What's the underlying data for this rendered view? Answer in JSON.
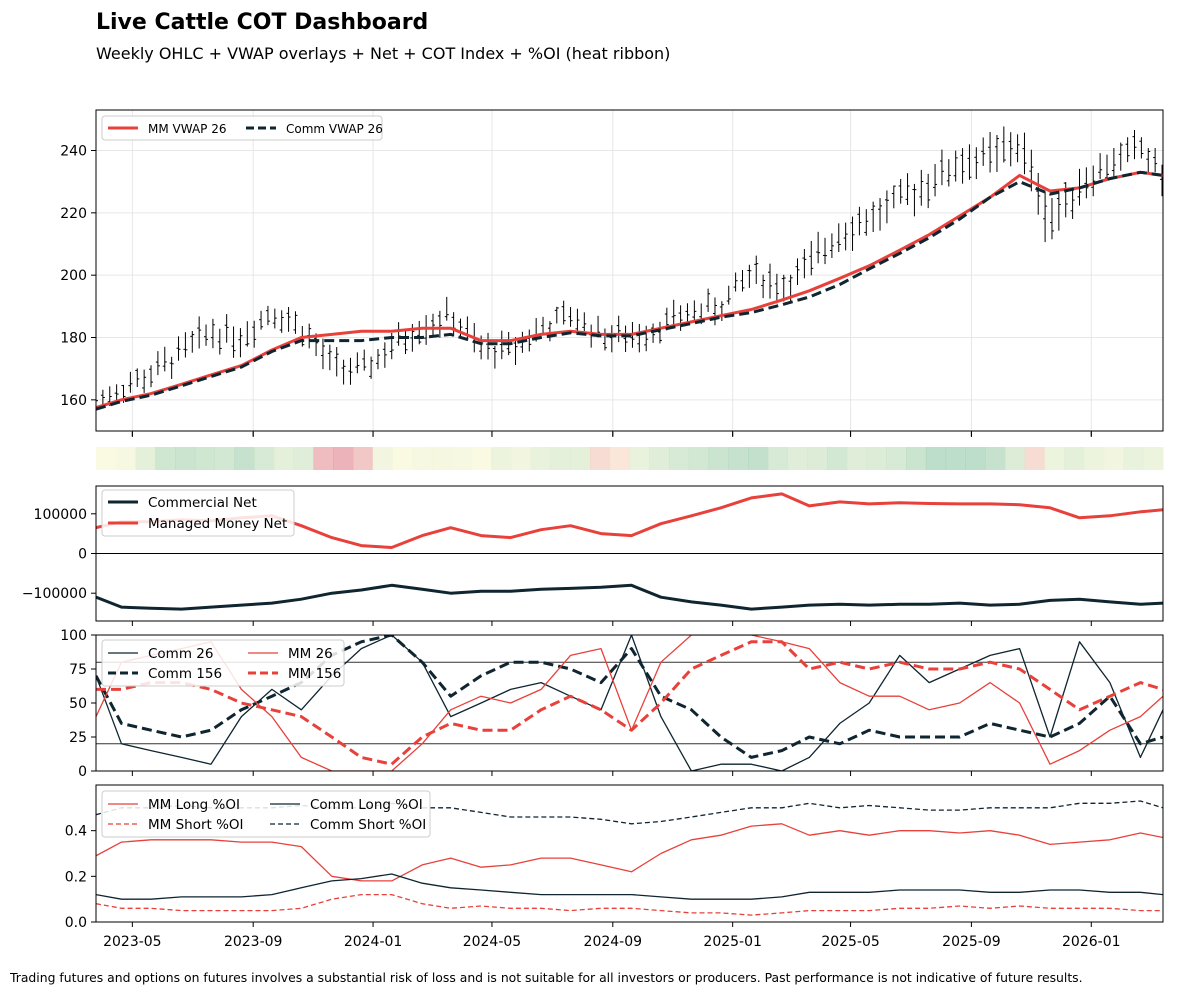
{
  "header": {
    "title": "Live Cattle COT Dashboard",
    "subtitle": "Weekly OHLC + VWAP overlays + Net + COT Index + %OI (heat ribbon)"
  },
  "footer": {
    "disclaimer": "Trading futures and options on futures involves a substantial risk of loss and is not suitable for all investors or producers. Past performance is not indicative of future results."
  },
  "colors": {
    "mm": "#e8413b",
    "comm": "#0f2530",
    "ohlc": "#000000"
  },
  "chart_data": [
    {
      "id": "price",
      "type": "ohlc",
      "ylim": [
        150,
        253
      ],
      "yticks": [
        160,
        180,
        200,
        220,
        240
      ],
      "grid": true,
      "legend": {
        "placement": "top-left",
        "entries": [
          "MM VWAP 26",
          "Comm VWAP 26"
        ]
      },
      "x": [
        "2023-03-25",
        "2023-04-20",
        "2023-05-20",
        "2023-06-20",
        "2023-07-20",
        "2023-08-20",
        "2023-09-20",
        "2023-10-20",
        "2023-11-20",
        "2023-12-20",
        "2024-01-20",
        "2024-02-20",
        "2024-03-20",
        "2024-04-20",
        "2024-05-20",
        "2024-06-20",
        "2024-07-20",
        "2024-08-20",
        "2024-09-20",
        "2024-10-20",
        "2024-11-20",
        "2024-12-20",
        "2025-01-20",
        "2025-02-20",
        "2025-03-20",
        "2025-04-20",
        "2025-05-20",
        "2025-06-20",
        "2025-07-20",
        "2025-08-20",
        "2025-09-20",
        "2025-10-20",
        "2025-11-20",
        "2025-12-20",
        "2026-01-20",
        "2026-02-20",
        "2026-03-15"
      ],
      "close": [
        160,
        164,
        168,
        175,
        182,
        180,
        189,
        183,
        171,
        169,
        177,
        184,
        187,
        176,
        176,
        183,
        187,
        181,
        180,
        184,
        188,
        190,
        201,
        196,
        203,
        214,
        218,
        224,
        230,
        236,
        238,
        242,
        217,
        229,
        236,
        241,
        232
      ],
      "range": [
        4,
        4,
        6,
        6,
        6,
        6,
        5,
        6,
        6,
        5,
        6,
        6,
        5,
        6,
        6,
        5,
        5,
        6,
        6,
        5,
        5,
        6,
        6,
        7,
        7,
        7,
        7,
        7,
        8,
        8,
        8,
        8,
        10,
        7,
        6,
        6,
        7
      ],
      "series": [
        {
          "name": "MM VWAP 26",
          "values": [
            157.5,
            160,
            162,
            165,
            168,
            171,
            176,
            180,
            181,
            182,
            182,
            183,
            183,
            179,
            179,
            181,
            182,
            181,
            181,
            183,
            185,
            187,
            189,
            192,
            195,
            199,
            203,
            208,
            213,
            219,
            225,
            232,
            227,
            228,
            231,
            233,
            232
          ]
        },
        {
          "name": "Comm VWAP 26",
          "values": [
            157,
            159.5,
            161.5,
            164.5,
            167.5,
            170.5,
            175.5,
            179,
            179,
            179,
            180,
            180,
            181,
            178,
            178,
            180,
            181.5,
            180.5,
            180.5,
            182.5,
            184.5,
            186.5,
            188,
            190.5,
            193,
            197,
            202,
            207,
            212,
            218,
            225,
            230,
            226,
            228,
            231,
            233,
            232
          ]
        }
      ]
    },
    {
      "id": "heat-ribbon",
      "type": "heatmap",
      "values": [
        0.05,
        0.1,
        0.3,
        0.55,
        0.6,
        0.55,
        0.5,
        0.65,
        0.45,
        0.3,
        0.35,
        -0.6,
        -0.7,
        -0.5,
        0.15,
        0.05,
        0.1,
        0.12,
        0.1,
        0.05,
        0.2,
        0.15,
        0.25,
        0.3,
        0.3,
        -0.3,
        -0.2,
        0.25,
        0.35,
        0.45,
        0.5,
        0.6,
        0.65,
        0.7,
        0.45,
        0.35,
        0.4,
        0.5,
        0.35,
        0.4,
        0.45,
        0.6,
        0.75,
        0.75,
        0.75,
        0.65,
        0.4,
        -0.3,
        0.2,
        0.3,
        0.2,
        0.15,
        0.25,
        0.2
      ]
    },
    {
      "id": "net",
      "type": "line",
      "ylim": [
        -170000,
        170000
      ],
      "yticks": [
        -100000,
        0,
        100000
      ],
      "legend": {
        "placement": "top-left",
        "entries": [
          "Commercial Net",
          "Managed Money Net"
        ]
      },
      "x": [
        "2023-03-25",
        "2023-04-20",
        "2023-05-20",
        "2023-06-20",
        "2023-07-20",
        "2023-08-20",
        "2023-09-20",
        "2023-10-20",
        "2023-11-20",
        "2023-12-20",
        "2024-01-20",
        "2024-02-20",
        "2024-03-20",
        "2024-04-20",
        "2024-05-20",
        "2024-06-20",
        "2024-07-20",
        "2024-08-20",
        "2024-09-20",
        "2024-10-20",
        "2024-11-20",
        "2024-12-20",
        "2025-01-20",
        "2025-02-20",
        "2025-03-20",
        "2025-04-20",
        "2025-05-20",
        "2025-06-20",
        "2025-07-20",
        "2025-08-20",
        "2025-09-20",
        "2025-10-20",
        "2025-11-20",
        "2025-12-20",
        "2026-01-20",
        "2026-02-20",
        "2026-03-15"
      ],
      "series": [
        {
          "name": "Commercial Net",
          "values": [
            -110000,
            -135000,
            -138000,
            -140000,
            -135000,
            -130000,
            -125000,
            -115000,
            -100000,
            -92000,
            -80000,
            -90000,
            -100000,
            -95000,
            -95000,
            -90000,
            -88000,
            -85000,
            -80000,
            -110000,
            -122000,
            -130000,
            -140000,
            -135000,
            -130000,
            -128000,
            -130000,
            -128000,
            -128000,
            -125000,
            -130000,
            -128000,
            -118000,
            -115000,
            -122000,
            -128000,
            -125000
          ]
        },
        {
          "name": "Managed Money Net",
          "values": [
            65000,
            80000,
            80000,
            85000,
            82000,
            90000,
            95000,
            70000,
            40000,
            20000,
            15000,
            45000,
            65000,
            45000,
            40000,
            60000,
            70000,
            50000,
            45000,
            75000,
            95000,
            115000,
            140000,
            150000,
            120000,
            130000,
            125000,
            128000,
            126000,
            125000,
            125000,
            123000,
            115000,
            90000,
            95000,
            105000,
            110000
          ]
        }
      ]
    },
    {
      "id": "cot-index",
      "type": "line",
      "ylim": [
        0,
        100
      ],
      "yticks": [
        0,
        25,
        50,
        75,
        100
      ],
      "hlines": [
        20,
        80
      ],
      "legend": {
        "placement": "top-left",
        "entries": [
          "Comm 26",
          "Comm 156",
          "MM 26",
          "MM 156"
        ]
      },
      "x": [
        "2023-03-25",
        "2023-04-20",
        "2023-05-20",
        "2023-06-20",
        "2023-07-20",
        "2023-08-20",
        "2023-09-20",
        "2023-10-20",
        "2023-11-20",
        "2023-12-20",
        "2024-01-20",
        "2024-02-20",
        "2024-03-20",
        "2024-04-20",
        "2024-05-20",
        "2024-06-20",
        "2024-07-20",
        "2024-08-20",
        "2024-09-20",
        "2024-10-20",
        "2024-11-20",
        "2024-12-20",
        "2025-01-20",
        "2025-02-20",
        "2025-03-20",
        "2025-04-20",
        "2025-05-20",
        "2025-06-20",
        "2025-07-20",
        "2025-08-20",
        "2025-09-20",
        "2025-10-20",
        "2025-11-20",
        "2025-12-20",
        "2026-01-20",
        "2026-02-20",
        "2026-03-15"
      ],
      "series": [
        {
          "name": "Comm 26",
          "values": [
            70,
            20,
            15,
            10,
            5,
            40,
            60,
            45,
            70,
            90,
            100,
            80,
            40,
            50,
            60,
            65,
            55,
            45,
            100,
            40,
            0,
            5,
            5,
            0,
            10,
            35,
            50,
            85,
            65,
            75,
            85,
            90,
            25,
            95,
            65,
            10,
            45
          ]
        },
        {
          "name": "Comm 156",
          "values": [
            70,
            35,
            30,
            25,
            30,
            45,
            55,
            65,
            85,
            95,
            100,
            80,
            55,
            70,
            80,
            80,
            75,
            65,
            90,
            55,
            45,
            25,
            10,
            15,
            25,
            20,
            30,
            25,
            25,
            25,
            35,
            30,
            25,
            35,
            55,
            20,
            25
          ]
        },
        {
          "name": "MM 26",
          "values": [
            40,
            80,
            85,
            90,
            95,
            60,
            40,
            10,
            0,
            0,
            0,
            20,
            45,
            55,
            50,
            60,
            85,
            90,
            30,
            80,
            100,
            100,
            100,
            95,
            90,
            65,
            55,
            55,
            45,
            50,
            65,
            50,
            5,
            15,
            30,
            40,
            55
          ]
        },
        {
          "name": "MM 156",
          "values": [
            60,
            60,
            65,
            65,
            60,
            50,
            45,
            40,
            25,
            10,
            5,
            25,
            35,
            30,
            30,
            45,
            55,
            45,
            30,
            50,
            75,
            85,
            95,
            95,
            75,
            80,
            75,
            80,
            75,
            75,
            80,
            75,
            60,
            45,
            55,
            65,
            60
          ]
        }
      ]
    },
    {
      "id": "pct-oi",
      "type": "line",
      "ylim": [
        0,
        0.6
      ],
      "yticks": [
        0.0,
        0.2,
        0.4
      ],
      "legend": {
        "placement": "top-left",
        "entries": [
          "MM Long %OI",
          "MM Short %OI",
          "Comm Long %OI",
          "Comm Short %OI"
        ]
      },
      "x": [
        "2023-03-25",
        "2023-04-20",
        "2023-05-20",
        "2023-06-20",
        "2023-07-20",
        "2023-08-20",
        "2023-09-20",
        "2023-10-20",
        "2023-11-20",
        "2023-12-20",
        "2024-01-20",
        "2024-02-20",
        "2024-03-20",
        "2024-04-20",
        "2024-05-20",
        "2024-06-20",
        "2024-07-20",
        "2024-08-20",
        "2024-09-20",
        "2024-10-20",
        "2024-11-20",
        "2024-12-20",
        "2025-01-20",
        "2025-02-20",
        "2025-03-20",
        "2025-04-20",
        "2025-05-20",
        "2025-06-20",
        "2025-07-20",
        "2025-08-20",
        "2025-09-20",
        "2025-10-20",
        "2025-11-20",
        "2025-12-20",
        "2026-01-20",
        "2026-02-20",
        "2026-03-15"
      ],
      "series": [
        {
          "name": "MM Long %OI",
          "values": [
            0.29,
            0.35,
            0.36,
            0.36,
            0.36,
            0.35,
            0.35,
            0.33,
            0.2,
            0.18,
            0.18,
            0.25,
            0.28,
            0.24,
            0.25,
            0.28,
            0.28,
            0.25,
            0.22,
            0.3,
            0.36,
            0.38,
            0.42,
            0.43,
            0.38,
            0.4,
            0.38,
            0.4,
            0.4,
            0.39,
            0.4,
            0.38,
            0.34,
            0.35,
            0.36,
            0.39,
            0.37
          ]
        },
        {
          "name": "MM Short %OI",
          "values": [
            0.08,
            0.06,
            0.06,
            0.05,
            0.05,
            0.05,
            0.05,
            0.06,
            0.1,
            0.12,
            0.12,
            0.08,
            0.06,
            0.07,
            0.06,
            0.06,
            0.05,
            0.06,
            0.06,
            0.05,
            0.04,
            0.04,
            0.03,
            0.04,
            0.05,
            0.05,
            0.05,
            0.06,
            0.06,
            0.07,
            0.06,
            0.07,
            0.06,
            0.06,
            0.06,
            0.05,
            0.05
          ]
        },
        {
          "name": "Comm Long %OI",
          "values": [
            0.12,
            0.1,
            0.1,
            0.11,
            0.11,
            0.11,
            0.12,
            0.15,
            0.18,
            0.19,
            0.21,
            0.17,
            0.15,
            0.14,
            0.13,
            0.12,
            0.12,
            0.12,
            0.12,
            0.11,
            0.1,
            0.1,
            0.1,
            0.11,
            0.13,
            0.13,
            0.13,
            0.14,
            0.14,
            0.14,
            0.13,
            0.13,
            0.14,
            0.14,
            0.13,
            0.13,
            0.12
          ]
        },
        {
          "name": "Comm Short %OI",
          "values": [
            0.47,
            0.5,
            0.5,
            0.51,
            0.5,
            0.5,
            0.5,
            0.51,
            0.5,
            0.5,
            0.52,
            0.5,
            0.5,
            0.48,
            0.46,
            0.46,
            0.46,
            0.45,
            0.43,
            0.44,
            0.46,
            0.48,
            0.5,
            0.5,
            0.52,
            0.5,
            0.51,
            0.5,
            0.49,
            0.49,
            0.5,
            0.5,
            0.5,
            0.52,
            0.52,
            0.53,
            0.5
          ]
        }
      ]
    }
  ],
  "x_axis": {
    "min": "2023-03-25",
    "max": "2026-03-15",
    "ticks": [
      "2023-05",
      "2023-09",
      "2024-01",
      "2024-05",
      "2024-09",
      "2025-01",
      "2025-05",
      "2025-09",
      "2026-01"
    ]
  }
}
